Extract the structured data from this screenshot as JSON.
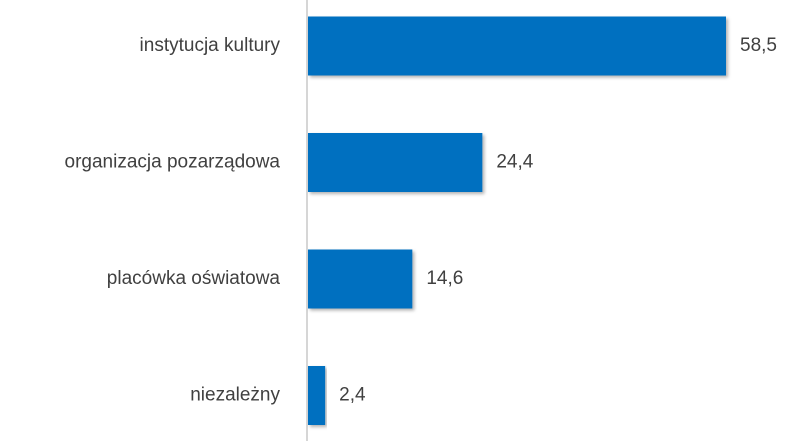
{
  "chart_data": {
    "type": "hbar",
    "categories": [
      "instytucja kultury",
      "organizacja pozarządowa",
      "placówka oświatowa",
      "niezależny"
    ],
    "values": [
      58.5,
      24.4,
      14.6,
      2.4
    ],
    "value_labels": [
      "58,5",
      "24,4",
      "14,6",
      "2,4"
    ],
    "color": "#0070c0"
  }
}
